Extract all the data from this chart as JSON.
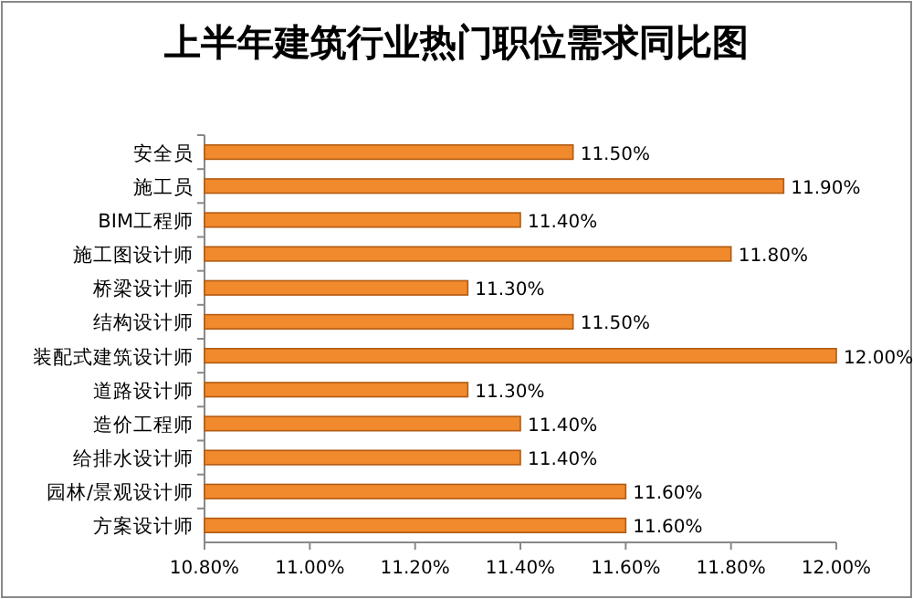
{
  "chart_data": {
    "type": "bar",
    "orientation": "horizontal",
    "title": "上半年建筑行业热门职位需求同比图",
    "categories": [
      "安全员",
      "施工员",
      "BIM工程师",
      "施工图设计师",
      "桥梁设计师",
      "结构设计师",
      "装配式建筑设计师",
      "道路设计师",
      "造价工程师",
      "给排水设计师",
      "园林/景观设计师",
      "方案设计师"
    ],
    "values": [
      11.5,
      11.9,
      11.4,
      11.8,
      11.3,
      11.5,
      12.0,
      11.3,
      11.4,
      11.4,
      11.6,
      11.6
    ],
    "value_labels": [
      "11.50%",
      "11.90%",
      "11.40%",
      "11.80%",
      "11.30%",
      "11.50%",
      "12.00%",
      "11.30%",
      "11.40%",
      "11.40%",
      "11.60%",
      "11.60%"
    ],
    "color": "#f08a2c",
    "xlim": [
      10.8,
      12.0
    ],
    "xticks": [
      {
        "value": 10.8,
        "label": "10.80%"
      },
      {
        "value": 11.0,
        "label": "11.00%"
      },
      {
        "value": 11.2,
        "label": "11.20%"
      },
      {
        "value": 11.4,
        "label": "11.40%"
      },
      {
        "value": 11.6,
        "label": "11.60%"
      },
      {
        "value": 11.8,
        "label": "11.80%"
      },
      {
        "value": 12.0,
        "label": "12.00%"
      }
    ],
    "grid": false
  }
}
